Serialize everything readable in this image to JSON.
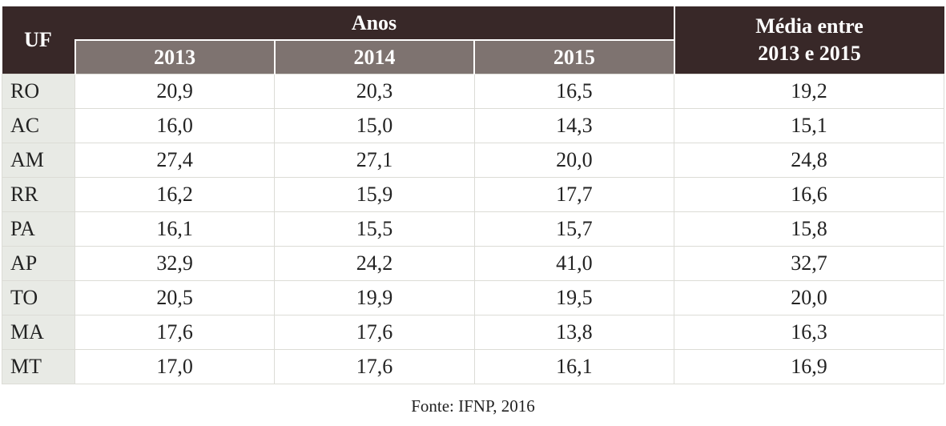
{
  "table": {
    "header": {
      "uf": "UF",
      "group": "Anos",
      "years": [
        "2013",
        "2014",
        "2015"
      ],
      "average": "Média entre 2013 e 2015"
    },
    "rows": [
      [
        "RO",
        "20,9",
        "20,3",
        "16,5",
        "19,2"
      ],
      [
        "AC",
        "16,0",
        "15,0",
        "14,3",
        "15,1"
      ],
      [
        "AM",
        "27,4",
        "27,1",
        "20,0",
        "24,8"
      ],
      [
        "RR",
        "16,2",
        "15,9",
        "17,7",
        "16,6"
      ],
      [
        "PA",
        "16,1",
        "15,5",
        "15,7",
        "15,8"
      ],
      [
        "AP",
        "32,9",
        "24,2",
        "41,0",
        "32,7"
      ],
      [
        "TO",
        "20,5",
        "19,9",
        "19,5",
        "20,0"
      ],
      [
        "MA",
        "17,6",
        "17,6",
        "13,8",
        "16,3"
      ],
      [
        "MT",
        "17,0",
        "17,6",
        "16,1",
        "16,9"
      ]
    ]
  },
  "source": "Fonte: IFNP, 2016"
}
